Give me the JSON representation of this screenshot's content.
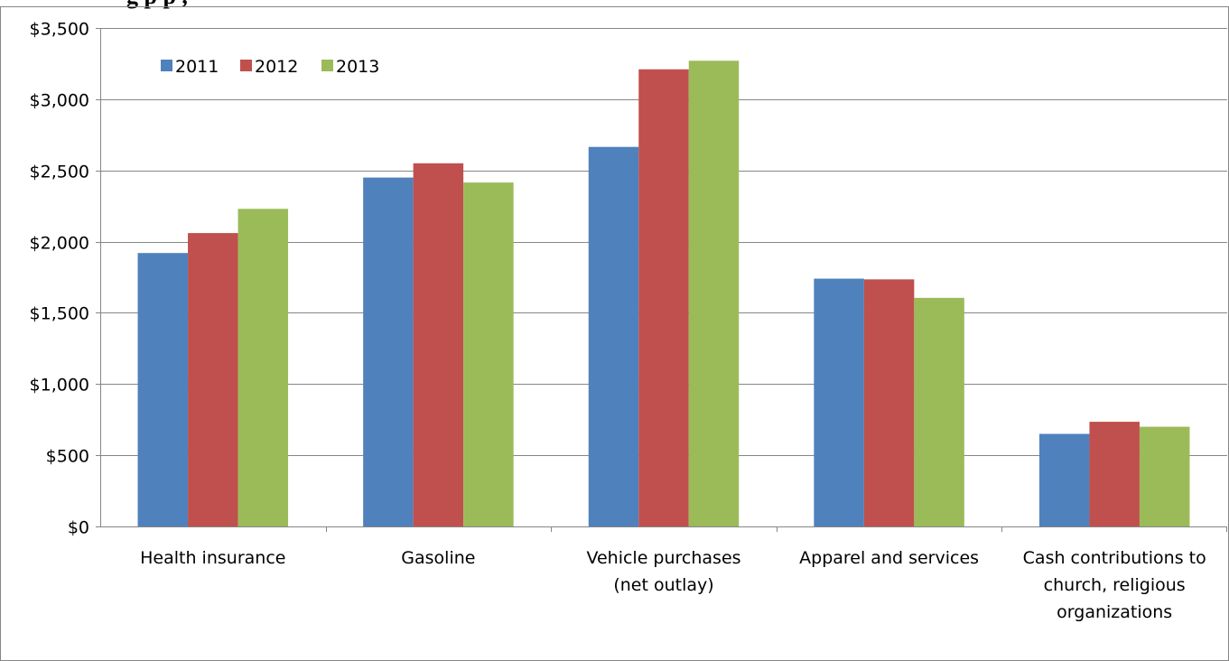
{
  "title_fragment": "g                                             p                                   p   ,",
  "chart_data": {
    "type": "bar",
    "categories": [
      [
        "Health insurance"
      ],
      [
        "Gasoline"
      ],
      [
        "Vehicle purchases",
        "(net outlay)"
      ],
      [
        "Apparel and services"
      ],
      [
        "Cash contributions to",
        "church, religious",
        "organizations"
      ]
    ],
    "series": [
      {
        "name": "2011",
        "color": "#4F81BD",
        "values": [
          1920,
          2450,
          2665,
          1740,
          650
        ]
      },
      {
        "name": "2012",
        "color": "#C0504D",
        "values": [
          2060,
          2550,
          3210,
          1735,
          735
        ]
      },
      {
        "name": "2013",
        "color": "#9BBB59",
        "values": [
          2230,
          2415,
          3270,
          1605,
          700
        ]
      }
    ],
    "yticks": [
      "$0",
      "$500",
      "$1,000",
      "$1,500",
      "$2,000",
      "$2,500",
      "$3,000",
      "$3,500"
    ],
    "ylim": [
      0,
      3500
    ],
    "grid": true,
    "legend_position": "top-left",
    "xlabel": "",
    "ylabel": ""
  }
}
